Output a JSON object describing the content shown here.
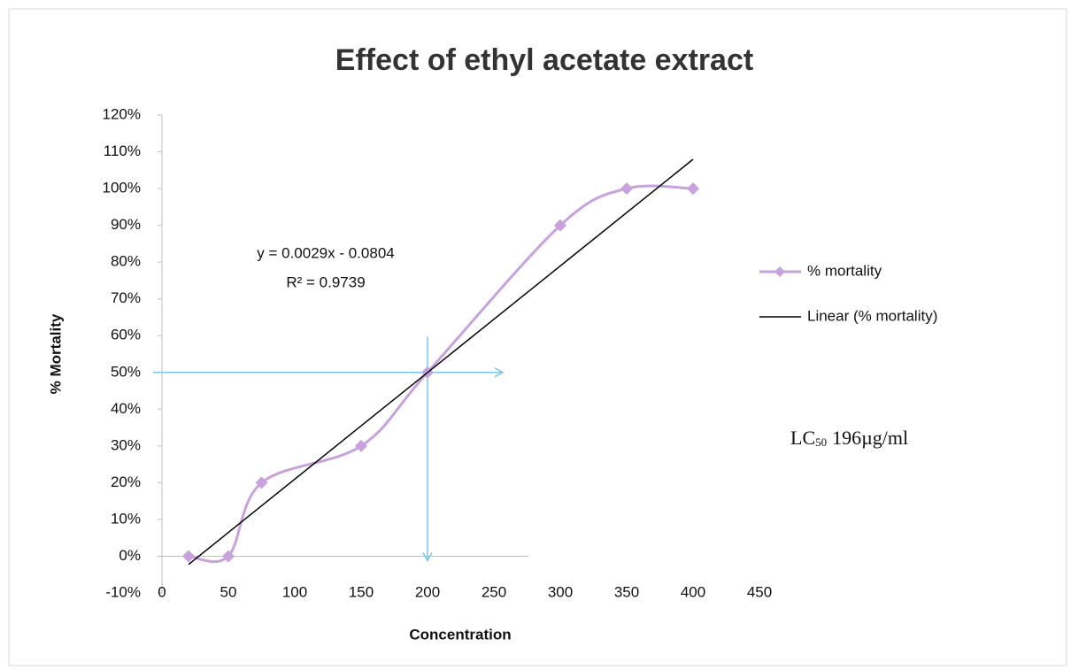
{
  "chart_data": {
    "type": "line",
    "title": "Effect of ethyl acetate extract",
    "xlabel": "Concentration",
    "ylabel": "% Mortality",
    "x": [
      20,
      50,
      75,
      150,
      200,
      300,
      350,
      400
    ],
    "series": [
      {
        "name": "% mortality",
        "color": "#c8a2dc",
        "values": [
          0,
          0,
          20,
          30,
          50,
          90,
          100,
          100
        ],
        "smooth": true,
        "marker": "diamond"
      },
      {
        "name": "Linear (% mortality)",
        "color": "#000000",
        "x": [
          20,
          400
        ],
        "values": [
          -2.24,
          107.96
        ]
      }
    ],
    "xlim": [
      0,
      450
    ],
    "xticks": [
      0,
      50,
      100,
      150,
      200,
      250,
      300,
      350,
      400,
      450
    ],
    "ylim": [
      -10,
      120
    ],
    "yticks": [
      {
        "value": -10,
        "label": "-10%"
      },
      {
        "value": 0,
        "label": "0%"
      },
      {
        "value": 10,
        "label": "10%"
      },
      {
        "value": 20,
        "label": "20%"
      },
      {
        "value": 30,
        "label": "30%"
      },
      {
        "value": 40,
        "label": "40%"
      },
      {
        "value": 50,
        "label": "50%"
      },
      {
        "value": 60,
        "label": "60%"
      },
      {
        "value": 70,
        "label": "70%"
      },
      {
        "value": 80,
        "label": "80%"
      },
      {
        "value": 90,
        "label": "90%"
      },
      {
        "value": 100,
        "label": "100%"
      },
      {
        "value": 110,
        "label": "110%"
      },
      {
        "value": 120,
        "label": "120%"
      }
    ],
    "equation": "y = 0.0029x - 0.0804",
    "r_squared": "R² = 0.9739",
    "reference_lines": {
      "x": 200,
      "y": 50,
      "color": "#7cc6e8"
    },
    "lc50": {
      "symbol": "LC",
      "subscript": "50",
      "text": "196µg/ml"
    },
    "legend": "right"
  }
}
